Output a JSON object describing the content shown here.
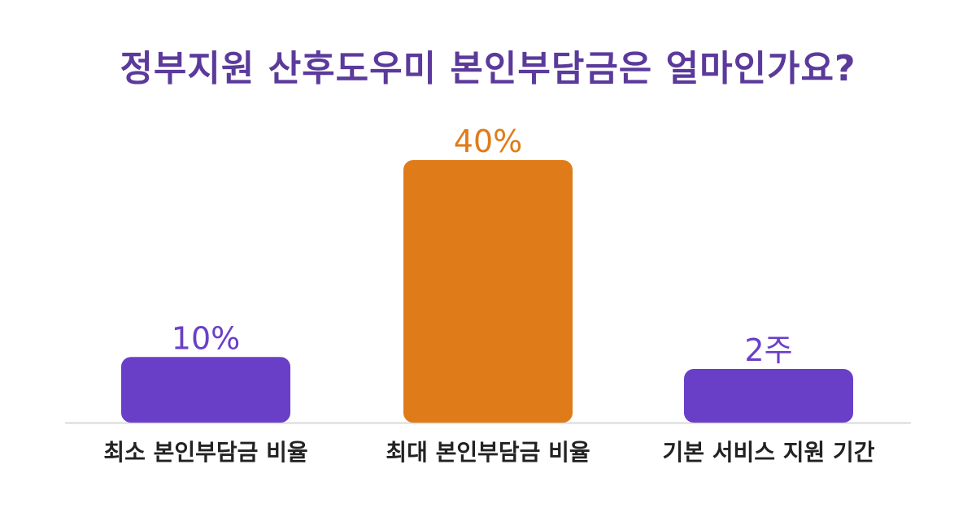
{
  "chart_data": {
    "type": "bar",
    "title": "정부지원 산후도우미 본인부담금은 얼마인가요?",
    "categories": [
      "최소 본인부담금 비율",
      "최대 본인부담금 비율",
      "기본 서비스 지원 기간"
    ],
    "values": [
      10,
      40,
      2
    ],
    "value_labels": [
      "10%",
      "40%",
      "2주"
    ],
    "bar_colors": [
      "#6a3fc8",
      "#e07b19",
      "#6a3fc8"
    ],
    "label_colors": [
      "#6a3fc8",
      "#e07b19",
      "#6a3fc8"
    ],
    "axis_color": "#d9d9d9",
    "title_color": "#5b3a9b",
    "grid": false,
    "legend": "none"
  }
}
